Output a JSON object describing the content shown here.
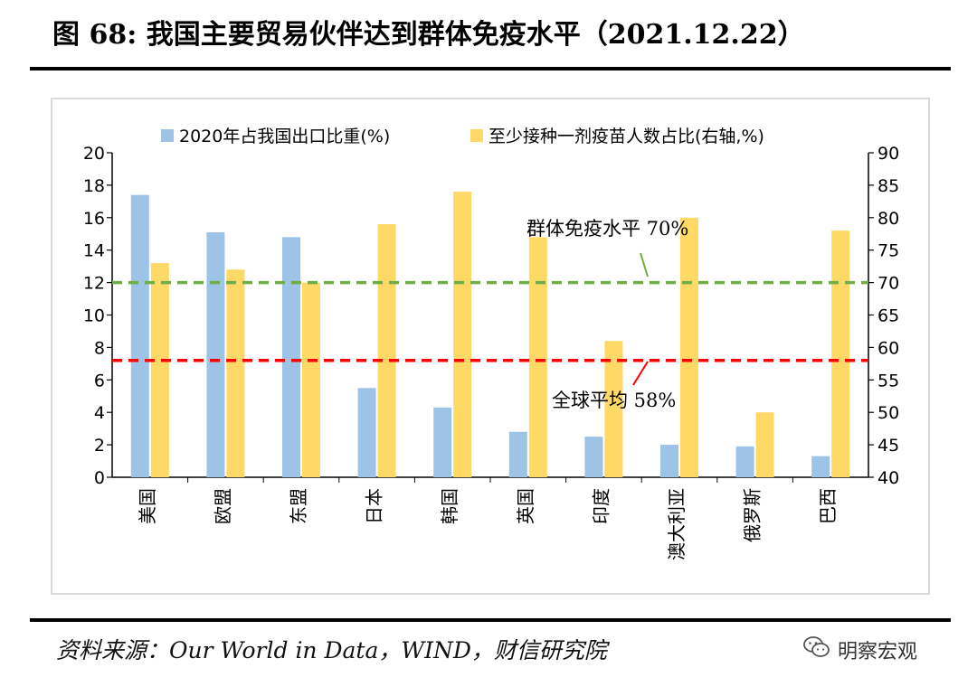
{
  "header": {
    "title": "图 68: 我国主要贸易伙伴达到群体免疫水平（2021.12.22）"
  },
  "chart_data": {
    "type": "bar",
    "categories": [
      "美国",
      "欧盟",
      "东盟",
      "日本",
      "韩国",
      "英国",
      "印度",
      "澳大利亚",
      "俄罗斯",
      "巴西"
    ],
    "series": [
      {
        "name": "2020年占我国出口比重(%)",
        "axis": "left",
        "color": "#9dc3e6",
        "values": [
          17.4,
          15.1,
          14.8,
          5.5,
          4.3,
          2.8,
          2.5,
          2.0,
          1.9,
          1.3
        ]
      },
      {
        "name": "至少接种一剂疫苗人数占比(右轴,%)",
        "axis": "right",
        "color": "#ffd966",
        "values": [
          73,
          72,
          70,
          79,
          84,
          77,
          61,
          80,
          50,
          78
        ]
      }
    ],
    "ylim_left": [
      0,
      20
    ],
    "yticks_left": [
      "0",
      "2",
      "4",
      "6",
      "8",
      "10",
      "12",
      "14",
      "16",
      "18",
      "20"
    ],
    "ylim_right": [
      40,
      90
    ],
    "yticks_right": [
      "40",
      "45",
      "50",
      "55",
      "60",
      "65",
      "70",
      "75",
      "80",
      "85",
      "90"
    ],
    "reference_lines": [
      {
        "label": "群体免疫水平 70%",
        "value": 70,
        "axis": "right",
        "color": "#70ad47",
        "style": "dashed"
      },
      {
        "label": "全球平均 58%",
        "value": 58,
        "axis": "right",
        "color": "#ff0000",
        "style": "dashed"
      }
    ],
    "legend_position": "top",
    "grid": false
  },
  "footer": {
    "source": "资料来源：Our World in Data，WIND，财信研究院",
    "brand": "明察宏观",
    "brand_icon": "wechat-icon"
  }
}
